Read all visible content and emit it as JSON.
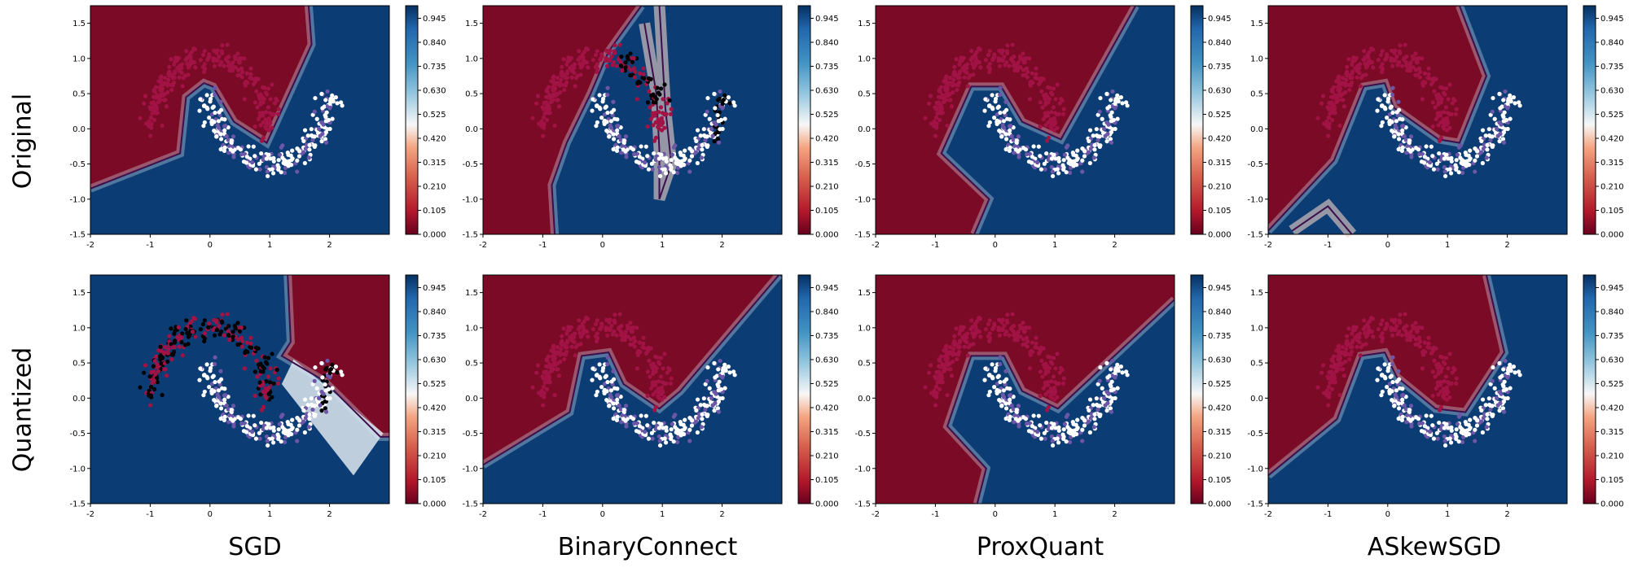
{
  "figure": {
    "row_labels": [
      "Original",
      "Quantized"
    ],
    "column_labels": [
      "SGD",
      "BinaryConnect",
      "ProxQuant",
      "ASkewSGD"
    ],
    "colormap": "RdBu",
    "colors": {
      "class0_points": "#a11245",
      "class1_points": "#ffffff",
      "class1_points_dim": "#6b56a8",
      "misclassified_points": "#000000",
      "boundary_line": "#3b0f4b"
    }
  },
  "axes_common": {
    "xlim": [
      -2,
      3
    ],
    "ylim": [
      -1.5,
      1.75
    ],
    "xticks": [
      "-2",
      "-1",
      "0",
      "1",
      "2"
    ],
    "yticks": [
      "-1.5",
      "-1.0",
      "-0.5",
      "0.0",
      "0.5",
      "1.0",
      "1.5"
    ]
  },
  "colorbar": {
    "range": [
      0,
      1
    ],
    "ticks": [
      "0.000",
      "0.105",
      "0.210",
      "0.315",
      "0.420",
      "0.525",
      "0.630",
      "0.735",
      "0.840",
      "0.945"
    ]
  },
  "chart_data": [
    {
      "type": "heatmap",
      "row": "Original",
      "method": "SGD",
      "subject": "decision boundary on two-moons data",
      "boundary": [
        [
          -2,
          -0.85
        ],
        [
          -0.5,
          -0.35
        ],
        [
          -0.4,
          0.45
        ],
        [
          -0.1,
          0.65
        ],
        [
          0.05,
          0.6
        ],
        [
          0.4,
          0.1
        ],
        [
          0.95,
          -0.2
        ],
        [
          1.7,
          1.2
        ],
        [
          1.65,
          1.75
        ]
      ],
      "misclassified": false
    },
    {
      "type": "heatmap",
      "row": "Original",
      "method": "BinaryConnect",
      "subject": "decision boundary on two-moons data",
      "boundary": [
        [
          -0.8,
          -1.5
        ],
        [
          -0.85,
          -0.8
        ],
        [
          -0.6,
          -0.2
        ],
        [
          -0.2,
          0.5
        ],
        [
          0.1,
          1.1
        ],
        [
          0.65,
          1.75
        ]
      ],
      "boundary2": [
        [
          0.7,
          1.5
        ],
        [
          0.9,
          0.5
        ],
        [
          0.95,
          -0.3
        ],
        [
          0.95,
          -1.0
        ],
        [
          1.15,
          -0.5
        ],
        [
          1.05,
          0.3
        ],
        [
          0.95,
          1.75
        ]
      ],
      "misclassified": true,
      "misclassified_regions": [
        "upper-right of top moon",
        "right tip of bottom moon"
      ]
    },
    {
      "type": "heatmap",
      "row": "Original",
      "method": "ProxQuant",
      "subject": "decision boundary on two-moons data",
      "boundary": [
        [
          -0.35,
          -1.5
        ],
        [
          -0.1,
          -1.0
        ],
        [
          -0.9,
          -0.35
        ],
        [
          -0.4,
          0.6
        ],
        [
          0.1,
          0.6
        ],
        [
          0.45,
          0.1
        ],
        [
          1.1,
          -0.15
        ],
        [
          2.35,
          1.75
        ]
      ],
      "misclassified": false
    },
    {
      "type": "heatmap",
      "row": "Original",
      "method": "ASkewSGD",
      "subject": "decision boundary on two-moons data",
      "boundary": [
        [
          -2,
          -1.45
        ],
        [
          -0.9,
          -0.45
        ],
        [
          -0.4,
          0.6
        ],
        [
          -0.05,
          0.65
        ],
        [
          0.1,
          0.3
        ],
        [
          0.85,
          -0.15
        ],
        [
          1.2,
          -0.2
        ],
        [
          1.65,
          0.75
        ],
        [
          1.2,
          1.75
        ]
      ],
      "boundary2": [
        [
          -1.6,
          -1.45
        ],
        [
          -1.0,
          -1.1
        ],
        [
          -0.6,
          -1.5
        ]
      ],
      "misclassified": false
    },
    {
      "type": "heatmap",
      "row": "Quantized",
      "method": "SGD",
      "subject": "decision boundary on two-moons data",
      "boundary": [
        [
          1.3,
          1.75
        ],
        [
          1.35,
          0.8
        ],
        [
          1.2,
          0.6
        ],
        [
          1.9,
          0.25
        ],
        [
          2.85,
          -0.55
        ],
        [
          3.0,
          -0.55
        ]
      ],
      "misclassified": true,
      "misclassified_regions": [
        "most of top moon",
        "right tip of bottom moon"
      ]
    },
    {
      "type": "heatmap",
      "row": "Quantized",
      "method": "BinaryConnect",
      "subject": "decision boundary on two-moons data",
      "boundary": [
        [
          -2,
          -0.95
        ],
        [
          -0.55,
          -0.2
        ],
        [
          -0.35,
          0.6
        ],
        [
          0.1,
          0.65
        ],
        [
          0.35,
          0.2
        ],
        [
          0.95,
          -0.15
        ],
        [
          1.3,
          0.1
        ],
        [
          2.95,
          1.75
        ]
      ],
      "misclassified": false
    },
    {
      "type": "heatmap",
      "row": "Quantized",
      "method": "ProxQuant",
      "subject": "decision boundary on two-moons data",
      "boundary": [
        [
          -0.3,
          -1.5
        ],
        [
          -0.15,
          -1.0
        ],
        [
          -0.8,
          -0.4
        ],
        [
          -0.4,
          0.6
        ],
        [
          0.15,
          0.6
        ],
        [
          0.45,
          0.1
        ],
        [
          1.05,
          -0.15
        ],
        [
          3.0,
          1.4
        ]
      ],
      "misclassified": false
    },
    {
      "type": "heatmap",
      "row": "Quantized",
      "method": "ASkewSGD",
      "subject": "decision boundary on two-moons data",
      "boundary": [
        [
          -2,
          -1.1
        ],
        [
          -0.85,
          -0.3
        ],
        [
          -0.45,
          0.6
        ],
        [
          -0.05,
          0.65
        ],
        [
          0.15,
          0.3
        ],
        [
          0.8,
          -0.15
        ],
        [
          1.3,
          -0.2
        ],
        [
          1.95,
          0.65
        ],
        [
          1.65,
          1.75
        ]
      ],
      "misclassified": false
    }
  ]
}
